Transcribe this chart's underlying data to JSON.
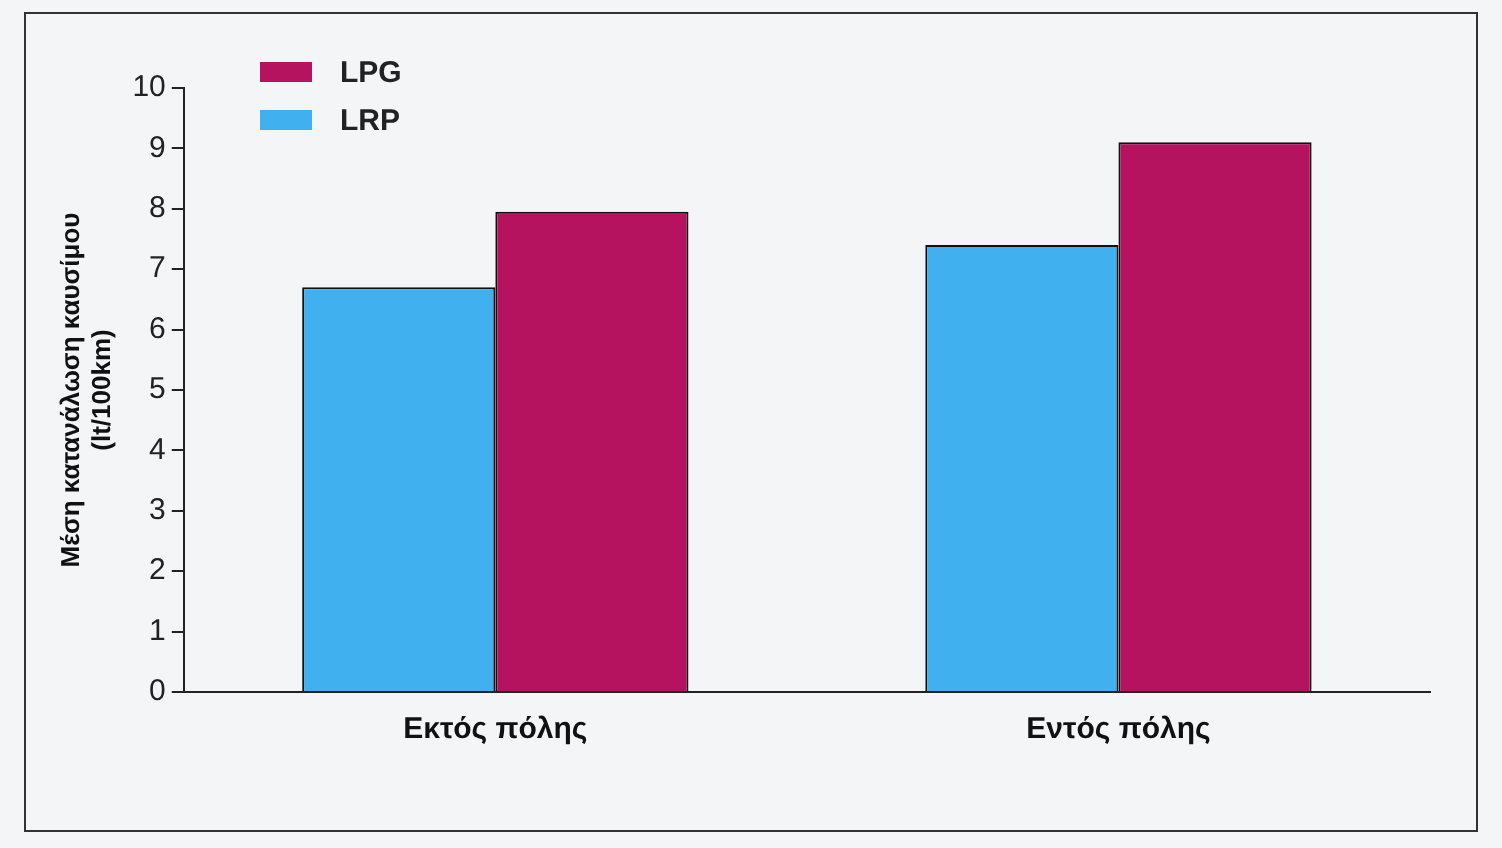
{
  "chart_data": {
    "type": "bar",
    "ylabel": "Μέση κατανάλωση καυσίμου\n(lt/100km)",
    "categories": [
      "Εκτός πόλης",
      "Εντός πόλης"
    ],
    "series": [
      {
        "name": "LRP",
        "color": "#41b0ee",
        "values": [
          6.7,
          7.4
        ]
      },
      {
        "name": "LPG",
        "color": "#b5125f",
        "values": [
          7.95,
          9.1
        ]
      }
    ],
    "ylim": [
      0,
      10
    ],
    "yticks": [
      0,
      1,
      2,
      3,
      4,
      5,
      6,
      7,
      8,
      9,
      10
    ],
    "grid": false,
    "legend": "top left"
  }
}
